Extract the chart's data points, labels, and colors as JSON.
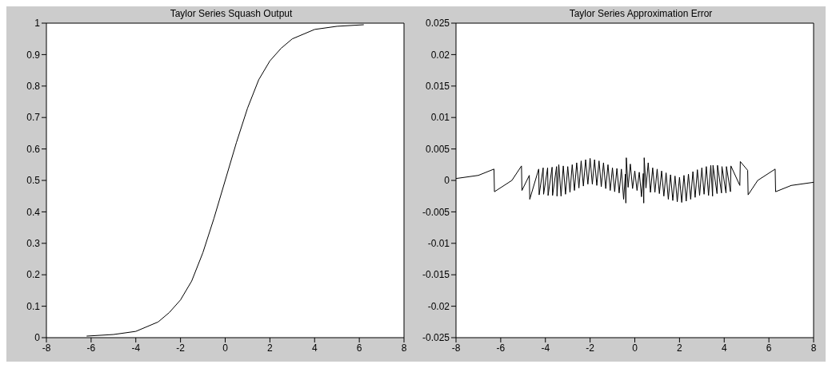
{
  "chart_data": [
    {
      "type": "line",
      "title": "Taylor Series Squash Output",
      "color": "#000000",
      "marker": "none",
      "grid": false,
      "x": [
        -6.2,
        -5,
        -4,
        -3,
        -2.5,
        -2,
        -1.5,
        -1,
        -0.5,
        0,
        0.5,
        1,
        1.5,
        2,
        2.5,
        3,
        4,
        5,
        6.2
      ],
      "values": [
        0.005,
        0.01,
        0.02,
        0.05,
        0.08,
        0.12,
        0.18,
        0.27,
        0.38,
        0.5,
        0.62,
        0.73,
        0.82,
        0.88,
        0.92,
        0.95,
        0.98,
        0.99,
        0.995
      ],
      "xlim": [
        -8,
        8
      ],
      "xticks": [
        -8,
        -6,
        -4,
        -2,
        0,
        2,
        4,
        6,
        8
      ],
      "ylim": [
        0,
        1
      ],
      "yticks": [
        0,
        0.1,
        0.2,
        0.3,
        0.4,
        0.5,
        0.6,
        0.7,
        0.8,
        0.9,
        1
      ]
    },
    {
      "type": "line",
      "title": "Taylor Series Approximation Error",
      "color": "#000000",
      "marker": "none",
      "grid": false,
      "x": [
        -8,
        -7,
        -6.3,
        -6.28,
        -5.5,
        -5.07,
        -5.05,
        -4.72,
        -4.7,
        -4.3,
        -4.28,
        -4.1,
        -4.08,
        -3.9,
        -3.88,
        -3.7,
        -3.68,
        -3.5,
        -3.48,
        -3.4,
        -3.3,
        -3.2,
        -3.1,
        -3.0,
        -2.9,
        -2.8,
        -2.7,
        -2.6,
        -2.5,
        -2.4,
        -2.3,
        -2.2,
        -2.1,
        -2.0,
        -1.9,
        -1.8,
        -1.7,
        -1.6,
        -1.5,
        -1.4,
        -1.3,
        -1.2,
        -1.1,
        -1.0,
        -0.9,
        -0.8,
        -0.7,
        -0.6,
        -0.5,
        -0.42,
        -0.4,
        -0.38,
        -0.3,
        -0.2,
        -0.1,
        0,
        0.1,
        0.2,
        0.3,
        0.38,
        0.4,
        0.42,
        0.5,
        0.6,
        0.7,
        0.8,
        0.9,
        1.0,
        1.1,
        1.2,
        1.3,
        1.4,
        1.5,
        1.6,
        1.7,
        1.8,
        1.9,
        2.0,
        2.1,
        2.2,
        2.3,
        2.4,
        2.5,
        2.6,
        2.7,
        2.8,
        2.9,
        3.0,
        3.1,
        3.2,
        3.3,
        3.4,
        3.48,
        3.5,
        3.68,
        3.7,
        3.88,
        3.9,
        4.08,
        4.1,
        4.28,
        4.3,
        4.7,
        4.72,
        5.05,
        5.07,
        5.5,
        6.28,
        6.3,
        7,
        8
      ],
      "values": [
        0.0003,
        0.0008,
        0.0018,
        -0.0018,
        0.0,
        0.0023,
        -0.0016,
        0.0008,
        -0.003,
        0.0018,
        -0.0023,
        0.002,
        -0.0022,
        0.002,
        -0.0024,
        0.0021,
        -0.0024,
        0.0022,
        -0.0025,
        0.0025,
        -0.0025,
        0.0023,
        -0.0022,
        0.0022,
        -0.0019,
        0.0025,
        -0.0016,
        0.0028,
        -0.0012,
        0.0031,
        -0.0009,
        0.0033,
        -0.0006,
        0.0035,
        -0.0006,
        0.0033,
        -0.0008,
        0.0031,
        -0.001,
        0.0028,
        -0.0013,
        0.0025,
        -0.0016,
        0.002,
        -0.0018,
        0.0019,
        -0.002,
        0.0018,
        -0.003,
        0.001,
        -0.0036,
        0.0036,
        -0.0011,
        0.0026,
        -0.0013,
        0.0015,
        -0.0016,
        0.0013,
        -0.0026,
        0.0011,
        -0.0036,
        0.0036,
        -0.0012,
        0.0028,
        -0.0019,
        0.002,
        -0.0019,
        0.0018,
        -0.0021,
        0.0015,
        -0.0025,
        0.0012,
        -0.003,
        0.0009,
        -0.0032,
        0.0007,
        -0.0034,
        0.0005,
        -0.0035,
        0.0008,
        -0.0033,
        0.001,
        -0.003,
        0.0014,
        -0.0027,
        0.0017,
        -0.0024,
        0.002,
        -0.0022,
        0.0022,
        -0.0024,
        0.0024,
        -0.0025,
        0.0024,
        -0.0021,
        0.0024,
        -0.002,
        0.0022,
        -0.002,
        0.0022,
        -0.0018,
        0.0023,
        -0.0008,
        0.003,
        0.0016,
        -0.0023,
        0.0,
        0.0018,
        -0.0018,
        -0.0008,
        -0.0003
      ],
      "xlim": [
        -8,
        8
      ],
      "xticks": [
        -8,
        -6,
        -4,
        -2,
        0,
        2,
        4,
        6,
        8
      ],
      "ylim": [
        -0.025,
        0.025
      ],
      "yticks": [
        -0.025,
        -0.02,
        -0.015,
        -0.01,
        -0.005,
        0,
        0.005,
        0.01,
        0.015,
        0.02,
        0.025
      ]
    }
  ]
}
